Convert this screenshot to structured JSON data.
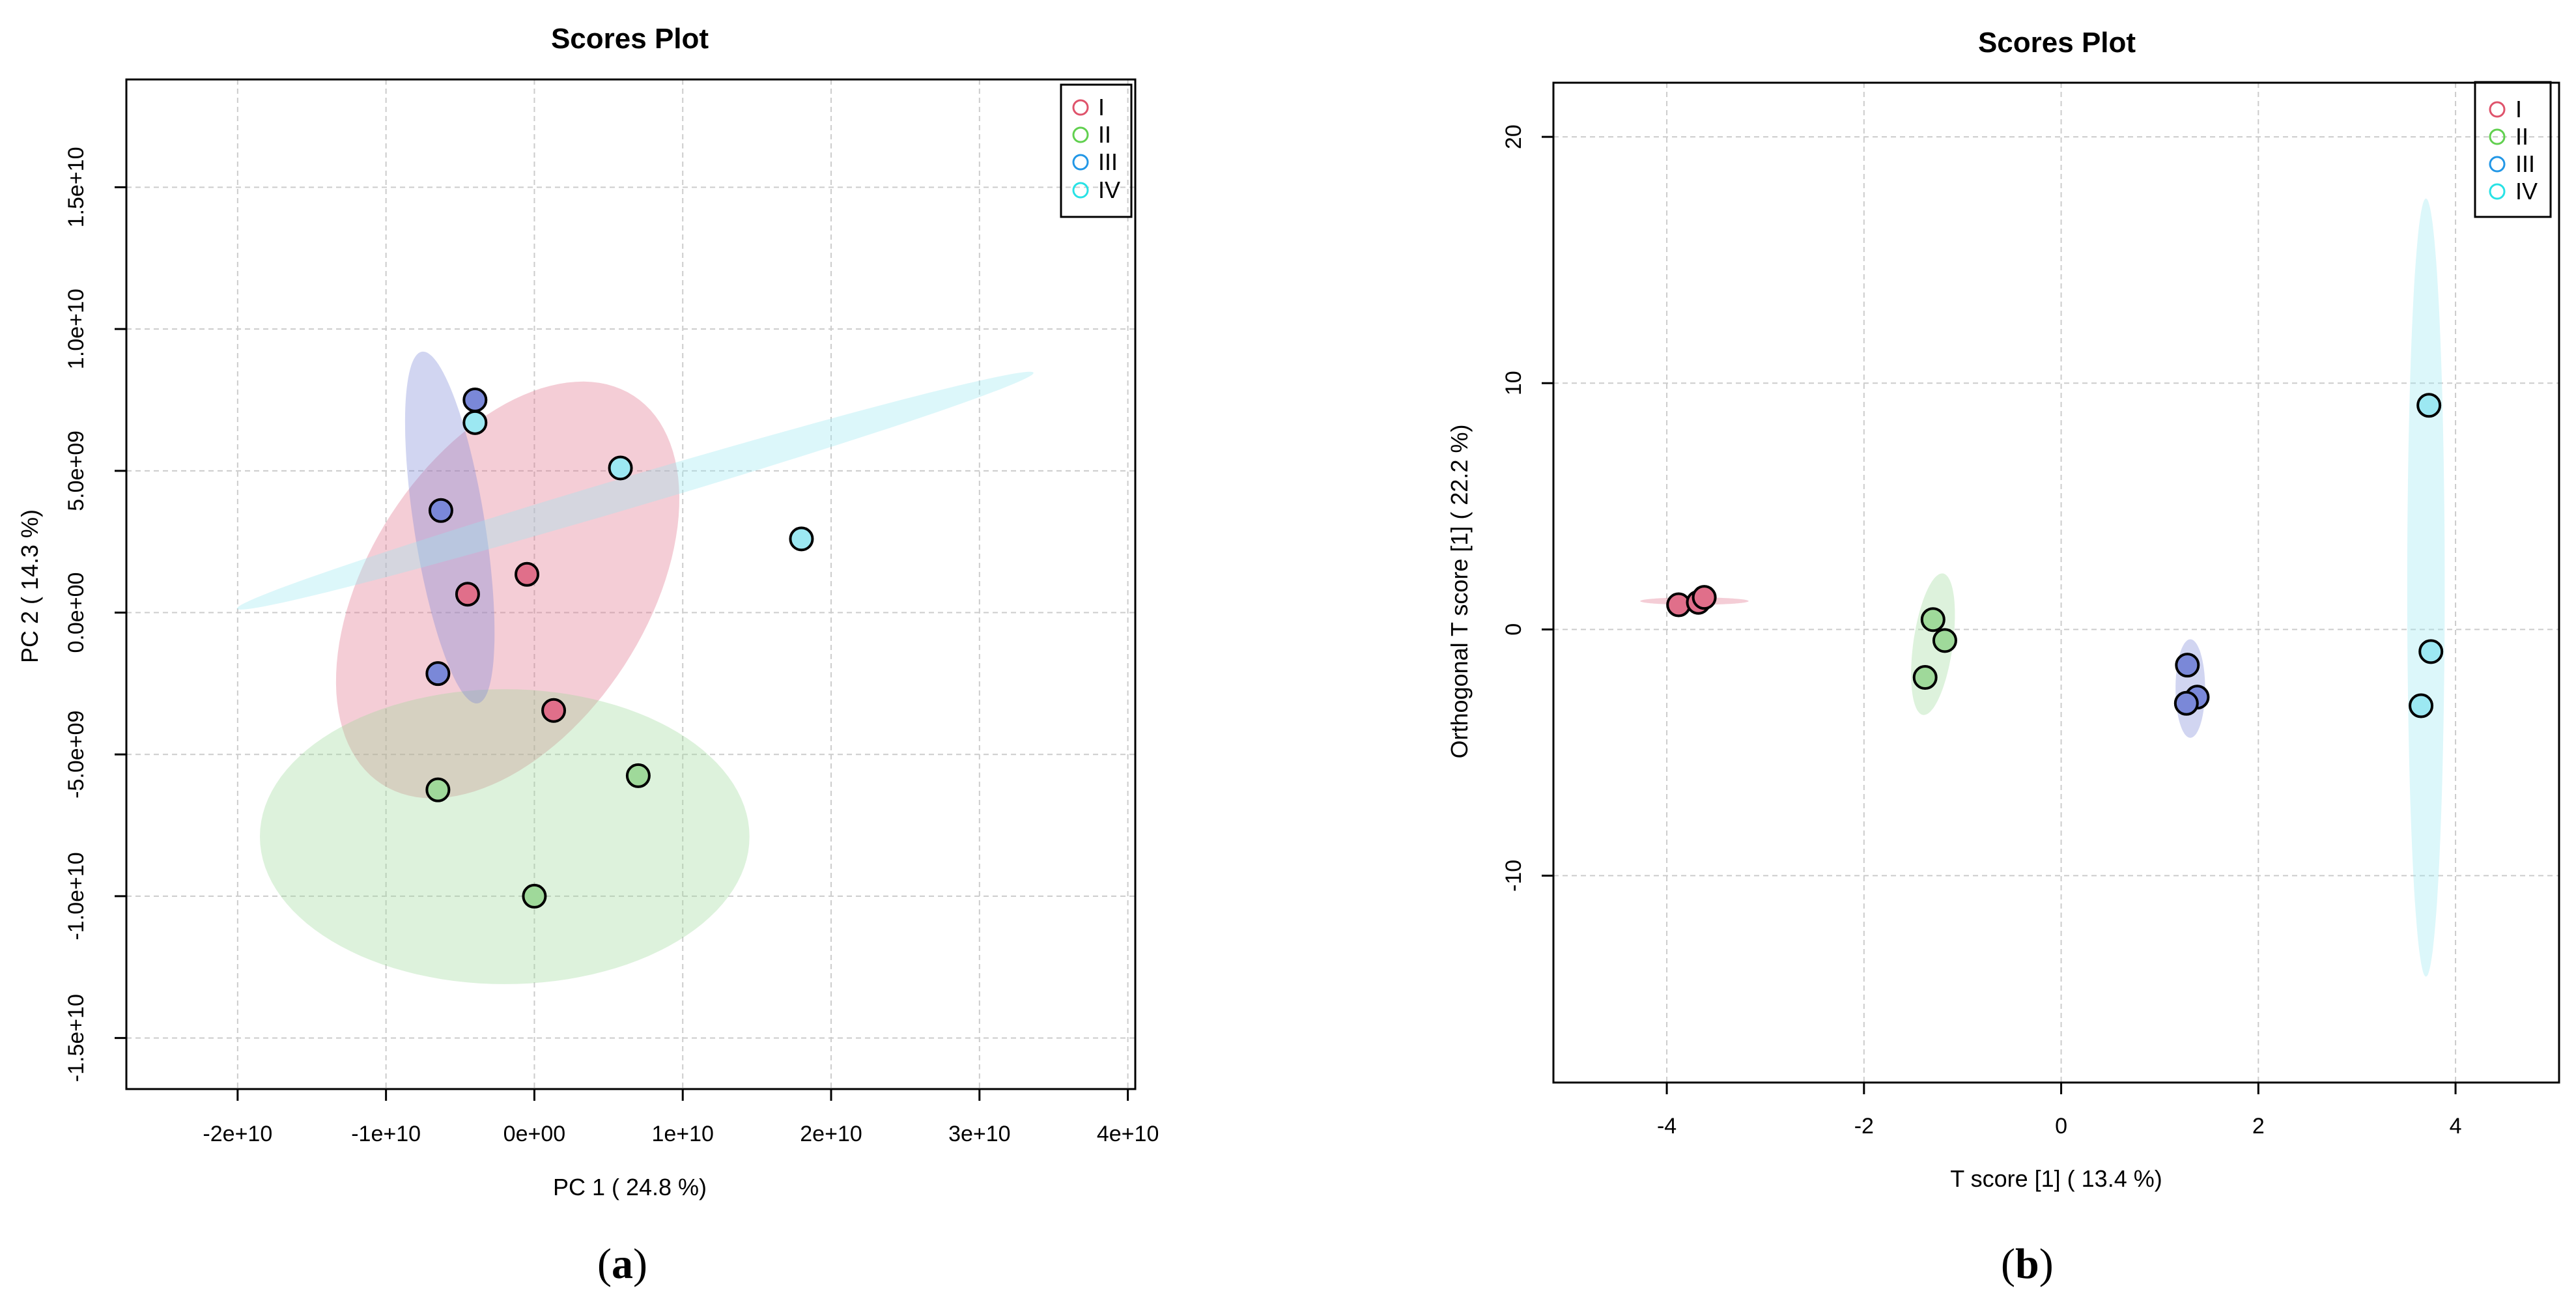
{
  "chart_data": [
    {
      "type": "scatter",
      "title": "Scores Plot",
      "xlabel": "PC 1 ( 24.8 %)",
      "ylabel": "PC 2 ( 14.3 %)",
      "xlim": [
        -27500000000.0,
        40500000000.0
      ],
      "ylim": [
        -16800000000.0,
        18800000000.0
      ],
      "xticks": [
        -20000000000.0,
        -10000000000.0,
        0,
        10000000000.0,
        20000000000.0,
        30000000000.0,
        40000000000.0
      ],
      "xtick_labels": [
        "-2e+10",
        "-1e+10",
        "0e+00",
        "1e+10",
        "2e+10",
        "3e+10",
        "4e+10"
      ],
      "yticks": [
        -15000000000.0,
        -10000000000.0,
        -5000000000.0,
        0,
        5000000000.0,
        10000000000.0,
        15000000000.0
      ],
      "ytick_labels": [
        "-1.5e+10",
        "-1.0e+10",
        "-5.0e+09",
        "0.0e+00",
        "5.0e+09",
        "1.0e+10",
        "1.5e+10"
      ],
      "grid": true,
      "legend_position": "top-right",
      "caption": "a",
      "series": [
        {
          "name": "I",
          "color": "#df536b",
          "fill": "#e06f8a",
          "x": [
            -4500000000.0,
            -500000000.0,
            1300000000.0
          ],
          "y": [
            650000000.0,
            1350000000.0,
            -3450000000.0
          ],
          "ellipse": {
            "cx": -1800000000.0,
            "cy": 800000000.0,
            "rx": 15600000000.0,
            "ry": 4900000000.0,
            "angle_deg": -57
          }
        },
        {
          "name": "II",
          "color": "#61d04f",
          "fill": "#9fd99a",
          "x": [
            -6500000000.0,
            0,
            7000000000.0
          ],
          "y": [
            -6250000000.0,
            -10000000000.0,
            -5750000000.0
          ],
          "ellipse": {
            "cx": -2000000000.0,
            "cy": -7900000000.0,
            "rx": 16500000000.0,
            "ry": 5200000000.0,
            "angle_deg": 0
          }
        },
        {
          "name": "III",
          "color": "#2297e6",
          "fill": "#7a88d8",
          "x": [
            -4000000000.0,
            -6300000000.0,
            -6500000000.0
          ],
          "y": [
            7500000000.0,
            3600000000.0,
            -2150000000.0
          ],
          "ellipse": {
            "cx": -5700000000.0,
            "cy": 3000000000.0,
            "rx": 12000000000.0,
            "ry": 1250000000.0,
            "angle_deg": 81
          }
        },
        {
          "name": "IV",
          "color": "#28e2e5",
          "fill": "#9ce8f2",
          "x": [
            -4000000000.0,
            5800000000.0,
            18000000000.0
          ],
          "y": [
            6700000000.0,
            5100000000.0,
            2600000000.0
          ],
          "ellipse": {
            "cx": 6800000000.0,
            "cy": 4300000000.0,
            "rx": 28000000000.0,
            "ry": 550000000.0,
            "angle_deg": -16.5
          }
        }
      ]
    },
    {
      "type": "scatter",
      "title": "Scores Plot",
      "xlabel": "T score [1] ( 13.4 %)",
      "ylabel": "Orthogonal T score [1] ( 22.2 %)",
      "xlim": [
        -5.15,
        5.05
      ],
      "ylim": [
        -18.4,
        22.2
      ],
      "xticks": [
        -4,
        -2,
        0,
        2,
        4
      ],
      "xtick_labels": [
        "-4",
        "-2",
        "0",
        "2",
        "4"
      ],
      "yticks": [
        -10,
        0,
        10,
        20
      ],
      "ytick_labels": [
        "-10",
        "0",
        "10",
        "20"
      ],
      "grid": true,
      "legend_position": "top-right",
      "caption": "b",
      "series": [
        {
          "name": "I",
          "color": "#df536b",
          "fill": "#e06f8a",
          "x": [
            -3.88,
            -3.68,
            -3.62
          ],
          "y": [
            1.0,
            1.1,
            1.3
          ],
          "ellipse": {
            "cx": -3.72,
            "cy": 1.15,
            "rx": 0.55,
            "ry": 0.15,
            "angle_deg": 0
          }
        },
        {
          "name": "II",
          "color": "#61d04f",
          "fill": "#9fd99a",
          "x": [
            -1.3,
            -1.18,
            -1.38
          ],
          "y": [
            0.4,
            -0.45,
            -1.95
          ],
          "ellipse": {
            "cx": -1.3,
            "cy": -0.6,
            "rx": 0.2,
            "ry": 2.9,
            "angle_deg": 8
          }
        },
        {
          "name": "III",
          "color": "#2297e6",
          "fill": "#7a88d8",
          "x": [
            1.28,
            1.38,
            1.27
          ],
          "y": [
            -1.45,
            -2.75,
            -3.0
          ],
          "ellipse": {
            "cx": 1.31,
            "cy": -2.4,
            "rx": 0.15,
            "ry": 2.0,
            "angle_deg": 0
          }
        },
        {
          "name": "IV",
          "color": "#28e2e5",
          "fill": "#9ce8f2",
          "x": [
            3.73,
            3.75,
            3.65
          ],
          "y": [
            9.1,
            -0.9,
            -3.1
          ],
          "ellipse": {
            "cx": 3.7,
            "cy": 1.7,
            "rx": 0.19,
            "ry": 15.8,
            "angle_deg": 0
          }
        }
      ]
    }
  ]
}
